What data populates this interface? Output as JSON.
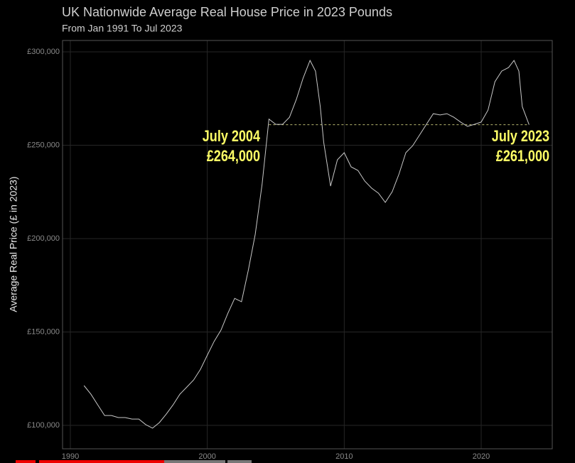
{
  "chart_data": {
    "type": "line",
    "title": "UK Nationwide Average Real House Price in 2023 Pounds",
    "subtitle": "From Jan 1991 To Jul 2023",
    "y_label": "Average Real Price (£ in 2023)",
    "x": [
      1991,
      1991.5,
      1992,
      1992.5,
      1993,
      1993.5,
      1994,
      1994.5,
      1995,
      1995.5,
      1996,
      1996.5,
      1997,
      1997.5,
      1998,
      1998.5,
      1999,
      1999.5,
      2000,
      2000.5,
      2001,
      2001.5,
      2002,
      2002.5,
      2003,
      2003.5,
      2004,
      2004.5,
      2005,
      2005.5,
      2006,
      2006.5,
      2007,
      2007.5,
      2007.9,
      2008.25,
      2008.5,
      2009,
      2009.5,
      2010,
      2010.5,
      2011,
      2011.5,
      2012,
      2012.5,
      2013,
      2013.5,
      2014,
      2014.5,
      2015,
      2015.5,
      2016,
      2016.5,
      2017,
      2017.5,
      2018,
      2018.5,
      2019,
      2019.5,
      2020,
      2020.5,
      2021,
      2021.5,
      2022,
      2022.4,
      2022.75,
      2023,
      2023.5
    ],
    "series": [
      {
        "name": "Average Real Price",
        "color": "#c8c8c8",
        "values": [
          121300,
          116700,
          111000,
          105300,
          105300,
          104200,
          104200,
          103400,
          103400,
          100400,
          98500,
          101500,
          106000,
          111000,
          116700,
          120500,
          124300,
          130000,
          137600,
          145000,
          151000,
          160000,
          168000,
          166200,
          183300,
          202300,
          228900,
          264000,
          261200,
          261200,
          265000,
          274500,
          286000,
          295400,
          289700,
          270700,
          251700,
          228100,
          242200,
          246000,
          238400,
          236500,
          230800,
          227000,
          224300,
          219400,
          225100,
          234600,
          246000,
          249800,
          255500,
          261200,
          266900,
          266200,
          266900,
          265000,
          262400,
          260100,
          261200,
          262400,
          268800,
          284000,
          289700,
          291600,
          295400,
          289700,
          270700,
          261000
        ]
      }
    ],
    "xlim": [
      1989.43,
      2025.19
    ],
    "xticks": [
      1990,
      2000,
      2010,
      2020
    ],
    "ylim": [
      87450,
      306100
    ],
    "yticks": [
      {
        "value": 100000,
        "label": "£100,000"
      },
      {
        "value": 150000,
        "label": "£150,000"
      },
      {
        "value": 200000,
        "label": "£200,000"
      },
      {
        "value": 250000,
        "label": "£250,000"
      },
      {
        "value": 300000,
        "label": "£300,000"
      }
    ],
    "grid": true,
    "reference_line": {
      "value": 261000,
      "x": [
        2004.5,
        2023.5
      ],
      "color": "#b8b870"
    },
    "annotations": [
      {
        "label": "July 2004",
        "value": 264000,
        "value_label": "£264,000",
        "color": "#ffff66"
      },
      {
        "label": "July 2023",
        "value": 261000,
        "value_label": "£261,000",
        "color": "#ffff66"
      }
    ]
  }
}
